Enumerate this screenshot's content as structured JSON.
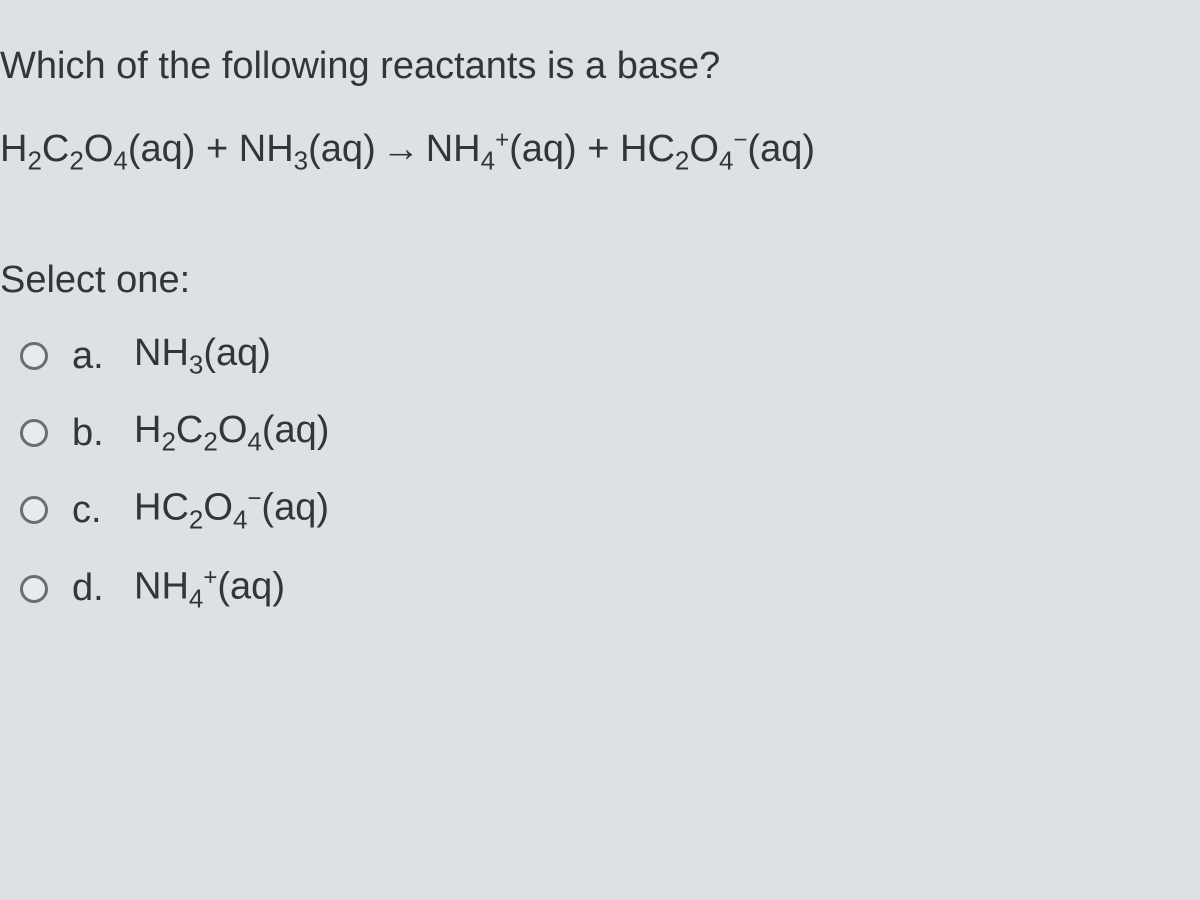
{
  "question": {
    "prompt_parts": {
      "prefix": "Which of the following reactants is a base?"
    },
    "equation": {
      "lhs_species1": {
        "formula": "H2C2O4",
        "sub_positions": [
          1,
          3,
          5
        ],
        "state": "(aq)"
      },
      "plus1": " + ",
      "lhs_species2": {
        "formula": "NH3",
        "sub_positions": [
          2
        ],
        "state": "(aq)"
      },
      "arrow": "→",
      "rhs_species1": {
        "formula": "NH4",
        "sub_positions": [
          2
        ],
        "charge": "+",
        "state": "(aq)"
      },
      "plus2": " + ",
      "rhs_species2": {
        "formula": "HC2O4",
        "sub_positions": [
          2,
          4
        ],
        "charge": "−",
        "state": "(aq)"
      }
    },
    "select_label": "Select one:",
    "options": [
      {
        "letter": "a.",
        "formula": "NH3",
        "sub_positions": [
          2
        ],
        "state": "(aq)",
        "charge": null
      },
      {
        "letter": "b.",
        "formula": "H2C2O4",
        "sub_positions": [
          1,
          3,
          5
        ],
        "state": "(aq)",
        "charge": null
      },
      {
        "letter": "c.",
        "formula": "HC2O4",
        "sub_positions": [
          2,
          4
        ],
        "state": "(aq)",
        "charge": "−"
      },
      {
        "letter": "d.",
        "formula": "NH4",
        "sub_positions": [
          2
        ],
        "state": "(aq)",
        "charge": "+"
      }
    ]
  },
  "styling": {
    "background_color": "#dde1e4",
    "text_color": "#333638",
    "radio_border_color": "#6b6e70",
    "radio_fill_color": "#e8ebed",
    "font_family": "Arial, Helvetica, sans-serif",
    "question_fontsize": 38,
    "sub_fontsize": 26,
    "sup_fontsize": 24
  }
}
